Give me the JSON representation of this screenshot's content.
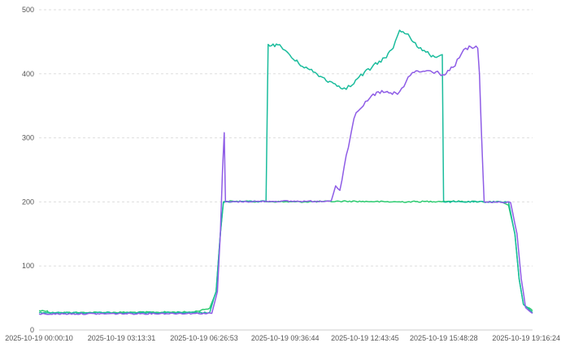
{
  "chart_data": {
    "type": "line",
    "title": "",
    "xlabel": "",
    "ylabel": "",
    "ylim": [
      0,
      500
    ],
    "yticks": [
      0,
      100,
      200,
      300,
      400,
      500
    ],
    "xlim": [
      "2025-10-19 00:00:10",
      "2025-10-19 19:16:24"
    ],
    "xticks": [
      "2025-10-19 00:00:10",
      "2025-10-19 03:13:31",
      "2025-10-19 06:26:53",
      "2025-10-19 09:36:44",
      "2025-10-19 12:43:45",
      "2025-10-19 15:48:28",
      "2025-10-19 19:16:24"
    ],
    "grid": true,
    "legend": "none",
    "series": [
      {
        "color": "#2ecc71",
        "points": [
          [
            "2025-10-19 00:00:10",
            30
          ],
          [
            "2025-10-19 00:20:00",
            30
          ],
          [
            "2025-10-19 00:21:00",
            27
          ],
          [
            "2025-10-19 06:00:00",
            28
          ],
          [
            "2025-10-19 06:40:00",
            34
          ],
          [
            "2025-10-19 06:55:00",
            60
          ],
          [
            "2025-10-19 07:05:00",
            150
          ],
          [
            "2025-10-19 07:12:00",
            198
          ],
          [
            "2025-10-19 07:20:00",
            201
          ],
          [
            "2025-10-19 10:00:00",
            200
          ],
          [
            "2025-10-19 12:00:00",
            201
          ],
          [
            "2025-10-19 14:00:00",
            200
          ],
          [
            "2025-10-19 16:00:00",
            201
          ],
          [
            "2025-10-19 18:00:00",
            200
          ],
          [
            "2025-10-19 18:20:00",
            195
          ],
          [
            "2025-10-19 18:35:00",
            150
          ],
          [
            "2025-10-19 18:45:00",
            80
          ],
          [
            "2025-10-19 18:55:00",
            40
          ],
          [
            "2025-10-19 19:16:24",
            30
          ]
        ]
      },
      {
        "color": "#1abc9c",
        "points": [
          [
            "2025-10-19 00:00:10",
            27
          ],
          [
            "2025-10-19 06:40:00",
            27
          ],
          [
            "2025-10-19 06:55:00",
            60
          ],
          [
            "2025-10-19 07:05:00",
            150
          ],
          [
            "2025-10-19 07:12:00",
            200
          ],
          [
            "2025-10-19 08:52:00",
            201
          ],
          [
            "2025-10-19 08:57:00",
            446
          ],
          [
            "2025-10-19 09:20:00",
            445
          ],
          [
            "2025-10-19 09:40:00",
            435
          ],
          [
            "2025-10-19 10:00:00",
            420
          ],
          [
            "2025-10-19 10:30:00",
            408
          ],
          [
            "2025-10-19 11:00:00",
            396
          ],
          [
            "2025-10-19 11:30:00",
            385
          ],
          [
            "2025-10-19 11:55:00",
            378
          ],
          [
            "2025-10-19 12:10:00",
            380
          ],
          [
            "2025-10-19 12:30:00",
            395
          ],
          [
            "2025-10-19 13:00:00",
            410
          ],
          [
            "2025-10-19 13:30:00",
            425
          ],
          [
            "2025-10-19 13:50:00",
            440
          ],
          [
            "2025-10-19 14:05:00",
            468
          ],
          [
            "2025-10-19 14:25:00",
            462
          ],
          [
            "2025-10-19 14:50:00",
            440
          ],
          [
            "2025-10-19 15:15:00",
            430
          ],
          [
            "2025-10-19 15:35:00",
            427
          ],
          [
            "2025-10-19 15:45:00",
            430
          ],
          [
            "2025-10-19 15:48:00",
            200
          ],
          [
            "2025-10-19 18:20:00",
            200
          ],
          [
            "2025-10-19 18:35:00",
            150
          ],
          [
            "2025-10-19 18:45:00",
            80
          ],
          [
            "2025-10-19 18:55:00",
            40
          ],
          [
            "2025-10-19 19:16:24",
            27
          ]
        ]
      },
      {
        "color": "#8e5ce6",
        "points": [
          [
            "2025-10-19 00:00:10",
            25
          ],
          [
            "2025-10-19 06:45:00",
            26
          ],
          [
            "2025-10-19 06:58:00",
            60
          ],
          [
            "2025-10-19 07:05:00",
            150
          ],
          [
            "2025-10-19 07:10:00",
            250
          ],
          [
            "2025-10-19 07:14:00",
            308
          ],
          [
            "2025-10-19 07:17:00",
            200
          ],
          [
            "2025-10-19 09:00:00",
            201
          ],
          [
            "2025-10-19 11:00:00",
            201
          ],
          [
            "2025-10-19 11:25:00",
            202
          ],
          [
            "2025-10-19 11:35:00",
            225
          ],
          [
            "2025-10-19 11:45:00",
            218
          ],
          [
            "2025-10-19 11:55:00",
            255
          ],
          [
            "2025-10-19 12:05:00",
            285
          ],
          [
            "2025-10-19 12:12:00",
            310
          ],
          [
            "2025-10-19 12:18:00",
            330
          ],
          [
            "2025-10-19 12:28:00",
            342
          ],
          [
            "2025-10-19 12:40:00",
            350
          ],
          [
            "2025-10-19 12:55:00",
            362
          ],
          [
            "2025-10-19 13:15:00",
            372
          ],
          [
            "2025-10-19 13:40:00",
            370
          ],
          [
            "2025-10-19 14:00:00",
            368
          ],
          [
            "2025-10-19 14:15:00",
            380
          ],
          [
            "2025-10-19 14:25:00",
            395
          ],
          [
            "2025-10-19 14:35:00",
            402
          ],
          [
            "2025-10-19 15:00:00",
            404
          ],
          [
            "2025-10-19 15:30:00",
            403
          ],
          [
            "2025-10-19 15:50:00",
            398
          ],
          [
            "2025-10-19 16:10:00",
            410
          ],
          [
            "2025-10-19 16:25:00",
            425
          ],
          [
            "2025-10-19 16:40:00",
            440
          ],
          [
            "2025-10-19 17:00:00",
            441
          ],
          [
            "2025-10-19 17:08:00",
            440
          ],
          [
            "2025-10-19 17:12:00",
            400
          ],
          [
            "2025-10-19 17:16:00",
            320
          ],
          [
            "2025-10-19 17:20:00",
            250
          ],
          [
            "2025-10-19 17:23:00",
            200
          ],
          [
            "2025-10-19 18:25:00",
            199
          ],
          [
            "2025-10-19 18:40:00",
            150
          ],
          [
            "2025-10-19 18:50:00",
            80
          ],
          [
            "2025-10-19 19:00:00",
            35
          ],
          [
            "2025-10-19 19:16:24",
            26
          ]
        ]
      }
    ]
  }
}
